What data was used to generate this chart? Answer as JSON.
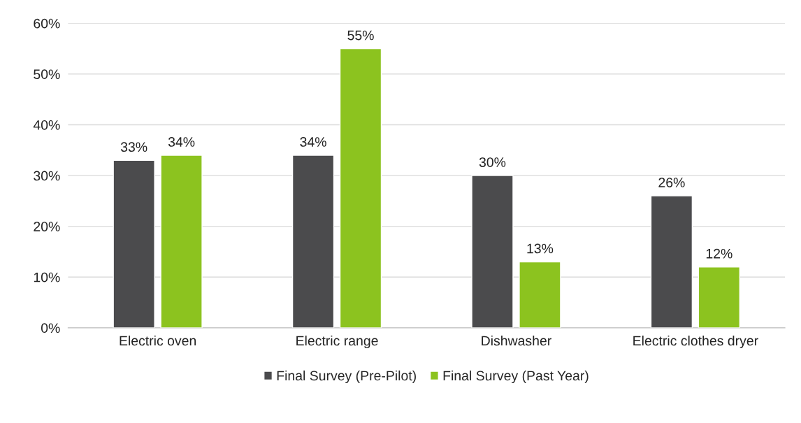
{
  "chart_data": {
    "type": "bar",
    "categories": [
      "Electric oven",
      "Electric range",
      "Dishwasher",
      "Electric clothes dryer"
    ],
    "series": [
      {
        "name": "Final Survey (Pre-Pilot)",
        "color": "#4b4b4d",
        "values": [
          33,
          34,
          30,
          26
        ],
        "value_labels": [
          "33%",
          "34%",
          "30%",
          "26%"
        ]
      },
      {
        "name": "Final Survey (Past Year)",
        "color": "#8cc31f",
        "values": [
          34,
          55,
          13,
          12
        ],
        "value_labels": [
          "34%",
          "55%",
          "13%",
          "12%"
        ]
      }
    ],
    "ylim": [
      0,
      60
    ],
    "yticks": [
      {
        "value": 0,
        "label": "0%"
      },
      {
        "value": 10,
        "label": "10%"
      },
      {
        "value": 20,
        "label": "20%"
      },
      {
        "value": 30,
        "label": "30%"
      },
      {
        "value": 40,
        "label": "40%"
      },
      {
        "value": 50,
        "label": "50%"
      },
      {
        "value": 60,
        "label": "60%"
      }
    ],
    "grid": "y",
    "legend": "bottom"
  }
}
